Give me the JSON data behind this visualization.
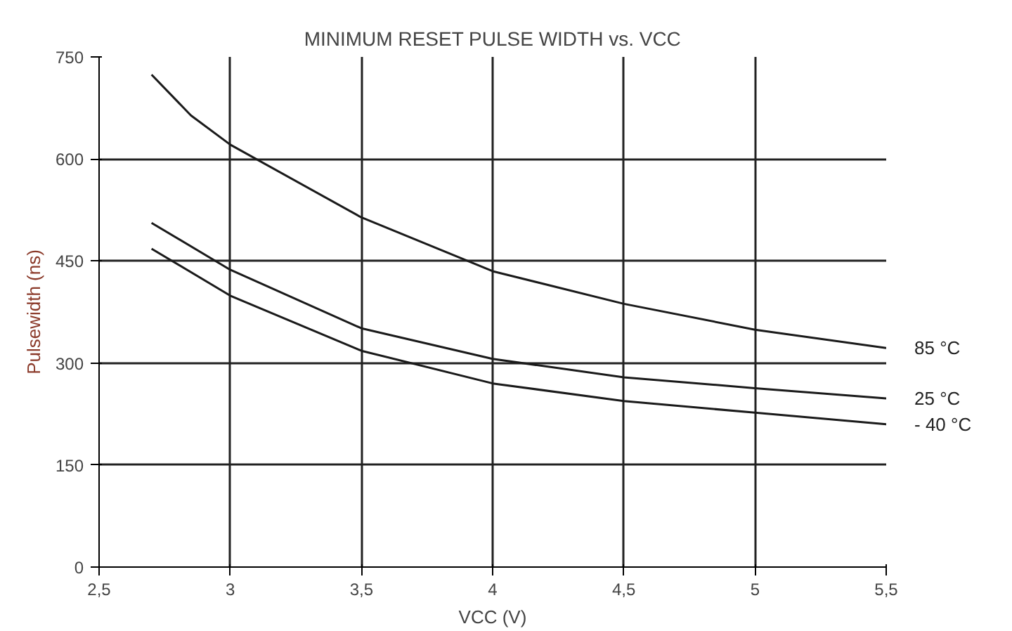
{
  "chart_data": {
    "type": "line",
    "title": "MINIMUM RESET PULSE WIDTH vs. VCC",
    "xlabel": "VCC (V)",
    "ylabel": "Pulsewidth (ns)",
    "xlim": [
      2.5,
      5.5
    ],
    "xticks": [
      {
        "value": 2.5,
        "label": "2,5"
      },
      3,
      {
        "value": 3.5,
        "label": "3,5"
      },
      4,
      {
        "value": 4.5,
        "label": "4,5"
      },
      5,
      {
        "value": 5.5,
        "label": "5,5"
      }
    ],
    "ylim": [
      0,
      750
    ],
    "yticks": [
      0,
      150,
      300,
      450,
      600,
      750
    ],
    "grid": true,
    "legend": false,
    "marker": "none",
    "line_style": "solid",
    "series": [
      {
        "name": "85 °C",
        "color": "#1a1a1a",
        "x": [
          2.7,
          2.85,
          3,
          3.5,
          4,
          4.5,
          5,
          5.5
        ],
        "values": [
          724,
          664,
          621,
          514,
          435,
          387,
          349,
          322
        ]
      },
      {
        "name": "25 °C",
        "color": "#1a1a1a",
        "x": [
          2.7,
          3,
          3.5,
          4,
          4.5,
          5,
          5.5
        ],
        "values": [
          506,
          437,
          351,
          306,
          279,
          263,
          248
        ]
      },
      {
        "name": "- 40 °C",
        "color": "#1a1a1a",
        "x": [
          2.7,
          3,
          3.5,
          4,
          4.5,
          5,
          5.5
        ],
        "values": [
          468,
          399,
          318,
          270,
          244,
          227,
          210
        ]
      }
    ]
  }
}
